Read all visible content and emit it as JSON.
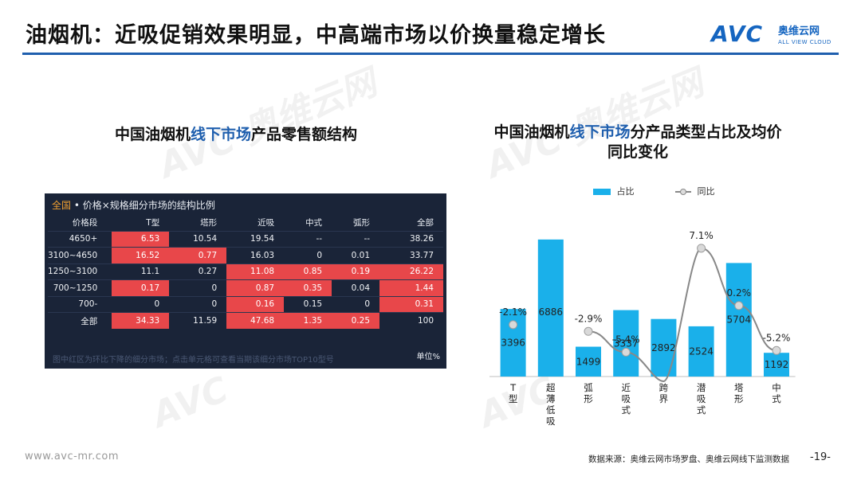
{
  "header": {
    "title": "油烟机：近吸促销效果明显，中高端市场以价换量稳定增长",
    "logo_mark": "AVC",
    "logo_cn": "奥维云网",
    "logo_en": "ALL VIEW CLOUD"
  },
  "watermark": {
    "mark": "AVC",
    "cn": "奥维云网",
    "en": "ALL VIEW CLOUD"
  },
  "left_chart": {
    "title_a": "中国油烟机",
    "title_highlight": "线下市场",
    "title_b": "产品零售额结构"
  },
  "right_chart": {
    "title_line1_a": "中国油烟机",
    "title_line1_highlight": "线下市场",
    "title_line1_b": "分产品类型占比及均价",
    "title_line2": "同比变化"
  },
  "chart_data": [
    {
      "type": "table",
      "header_scope": "全国",
      "header_text": " • 价格×规格细分市场的结构比例",
      "columns": [
        "价格段",
        "T型",
        "塔形",
        "近吸",
        "中式",
        "弧形",
        "全部"
      ],
      "rows": [
        [
          "4650+",
          "6.53",
          "10.54",
          "19.54",
          "--",
          "--",
          "38.26"
        ],
        [
          "3100~4650",
          "16.52",
          "0.77",
          "16.03",
          "0",
          "0.01",
          "33.77"
        ],
        [
          "1250~3100",
          "11.1",
          "0.27",
          "11.08",
          "0.85",
          "0.19",
          "26.22"
        ],
        [
          "700~1250",
          "0.17",
          "0",
          "0.87",
          "0.35",
          "0.04",
          "1.44"
        ],
        [
          "700-",
          "0",
          "0",
          "0.16",
          "0.15",
          "0",
          "0.31"
        ],
        [
          "全部",
          "34.33",
          "11.59",
          "47.68",
          "1.35",
          "0.25",
          "100"
        ]
      ],
      "highlight": [
        [
          0,
          1
        ],
        [
          1,
          2
        ],
        [
          2,
          3
        ],
        [
          3,
          1
        ],
        [
          4,
          3
        ],
        [
          5,
          1
        ],
        [
          1,
          1
        ],
        [
          2,
          4
        ],
        [
          2,
          5
        ],
        [
          2,
          6
        ],
        [
          3,
          3
        ],
        [
          3,
          4
        ],
        [
          3,
          6
        ],
        [
          4,
          6
        ],
        [
          5,
          3
        ],
        [
          5,
          4
        ],
        [
          5,
          5
        ]
      ],
      "highlight_color": "#e8474a",
      "note": "图中红区为环比下降的细分市场；点击单元格可查看当期该细分市场TOP10型号",
      "unit": "单位%"
    },
    {
      "type": "bar",
      "categories": [
        "T型",
        "超薄低吸",
        "弧形",
        "近吸式",
        "跨界",
        "潜吸式",
        "塔形",
        "中式"
      ],
      "series": [
        {
          "name": "占比",
          "values": [
            3396,
            6886,
            1499,
            3337,
            2892,
            2524,
            5704,
            1192
          ],
          "color": "#1ab0ea"
        },
        {
          "name": "同比",
          "type": "line",
          "values": [
            -2.1,
            null,
            -2.9,
            -5.4,
            null,
            7.1,
            0.2,
            -5.2
          ],
          "labels": [
            "-2.1%",
            "",
            "-2.9%",
            "-5.4%",
            "",
            "7.1%",
            "0.2%",
            "-5.2%"
          ],
          "color": "#888888"
        }
      ],
      "legend": "top"
    }
  ],
  "footer": {
    "website": "www.avc-mr.com",
    "source": "数据来源：奥维云网市场罗盘、奥维云网线下监测数据",
    "page": "-19-"
  }
}
